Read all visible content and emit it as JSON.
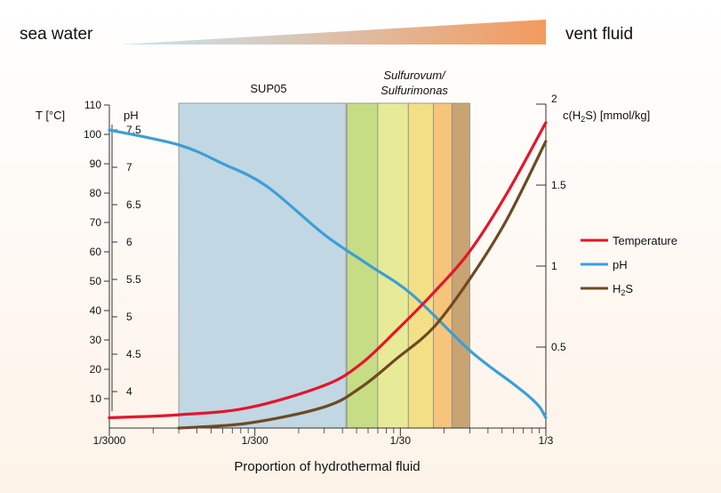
{
  "header": {
    "left_label": "sea water",
    "right_label": "vent fluid"
  },
  "colors": {
    "gradient_start": "#c6e6f6",
    "gradient_end": "#f39a5e",
    "background_top": "#ffffff",
    "background_bottom": "#fdf3e8",
    "temperature": "#e3162b",
    "ph": "#3b9fd6",
    "h2s": "#6d4a22"
  },
  "chart_data": {
    "type": "line",
    "xlabel": "Proportion of hydrothermal fluid",
    "x_scale": "log",
    "x_range": [
      "1/3000",
      "1/3"
    ],
    "x_ticks": [
      "1/3000",
      "1/300",
      "1/30",
      "1/3"
    ],
    "y_left_temperature": {
      "label": "T [°C]",
      "range": [
        0,
        110
      ],
      "ticks": [
        10,
        20,
        30,
        40,
        50,
        60,
        70,
        80,
        90,
        100,
        110
      ]
    },
    "y_left_ph": {
      "label": "pH",
      "range": [
        3.6,
        7.7
      ],
      "ticks": [
        "4",
        "4.5",
        "5",
        "5.5",
        "6",
        "6.5",
        "7",
        "7.5"
      ]
    },
    "y_right": {
      "label_main": "c(H",
      "label_sub": "2",
      "label_rest": "S) [mmol/kg]",
      "range": [
        0,
        2
      ],
      "ticks": [
        "0.5",
        "1",
        "1.5",
        "2"
      ]
    },
    "regions": [
      {
        "label": "SUP05",
        "x_start": 0.001,
        "x_end": 0.0141,
        "color": "#c1d7e3"
      },
      {
        "label_line1": "Sulfurovum/",
        "label_line2": "Sulfurimonas",
        "x_start": 0.0143,
        "x_end": 0.1
      },
      {
        "x_start": 0.0143,
        "x_end": 0.0233,
        "color": "#c6dc85"
      },
      {
        "x_start": 0.0233,
        "x_end": 0.0378,
        "color": "#e7eb97"
      },
      {
        "x_start": 0.0378,
        "x_end": 0.0562,
        "color": "#f2df86"
      },
      {
        "x_start": 0.0562,
        "x_end": 0.0754,
        "color": "#f6c47a"
      },
      {
        "x_start": 0.0754,
        "x_end": 0.1,
        "color": "#c7a472"
      }
    ],
    "legend_position": "right",
    "series": [
      {
        "name": "Temperature",
        "axis": "T",
        "x": [
          0.000333,
          0.001,
          0.003,
          0.01,
          0.0178,
          0.0316,
          0.0562,
          0.1,
          0.178,
          0.333
        ],
        "y": [
          3.5,
          4.5,
          6.9,
          14.5,
          21.8,
          33.4,
          46.0,
          60.2,
          79.5,
          104.0
        ]
      },
      {
        "name": "pH",
        "axis": "pH",
        "x": [
          0.000333,
          0.001,
          0.002,
          0.004,
          0.01,
          0.02,
          0.04,
          0.1,
          0.2,
          0.25,
          0.3,
          0.333
        ],
        "y": [
          7.5,
          7.3,
          7.05,
          6.75,
          6.1,
          5.7,
          5.3,
          4.55,
          4.1,
          3.95,
          3.8,
          3.65
        ]
      },
      {
        "name": "H",
        "name_sub": "2",
        "name_rest": "S",
        "axis": "H2S",
        "x": [
          0.001,
          0.003,
          0.01,
          0.0178,
          0.0316,
          0.0562,
          0.1,
          0.178,
          0.333
        ],
        "y": [
          0.0,
          0.03,
          0.13,
          0.25,
          0.43,
          0.62,
          0.92,
          1.28,
          1.77
        ]
      }
    ]
  }
}
